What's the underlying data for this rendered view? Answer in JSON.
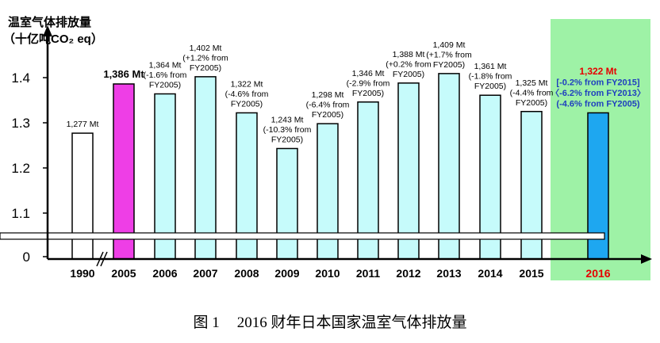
{
  "chart_data": {
    "type": "bar",
    "title_line1": "温室气体排放量",
    "title_line2": "（十亿吨CO₂ eq）",
    "ylabel": "十亿吨CO₂ eq",
    "ylim": [
      1.05,
      1.45
    ],
    "y_ticks": [
      "1.4",
      "1.3",
      "1.2",
      "1.1",
      "0"
    ],
    "y_tick_values": [
      1.4,
      1.3,
      1.2,
      1.1,
      1.05
    ],
    "axis_break": true,
    "categories": [
      "1990",
      "2005",
      "2006",
      "2007",
      "2008",
      "2009",
      "2010",
      "2011",
      "2012",
      "2013",
      "2014",
      "2015",
      "2016"
    ],
    "values": [
      1.277,
      1.386,
      1.364,
      1.402,
      1.322,
      1.243,
      1.298,
      1.346,
      1.388,
      1.409,
      1.361,
      1.325,
      1.322
    ],
    "bar_colors": [
      "#ffffff",
      "#ee3ee6",
      "#c6fbfb",
      "#c6fbfb",
      "#c6fbfb",
      "#c6fbfb",
      "#c6fbfb",
      "#c6fbfb",
      "#c6fbfb",
      "#c6fbfb",
      "#c6fbfb",
      "#c6fbfb",
      "#1ea7f0"
    ],
    "highlight_category": "2016",
    "highlight_bg": "#9ef2a6",
    "annotations": [
      [
        "1,277 Mt"
      ],
      [
        "1,386 Mt"
      ],
      [
        "1,364 Mt",
        "(-1.6% from",
        "FY2005)"
      ],
      [
        "1,402 Mt",
        "(+1.2% from",
        "FY2005)"
      ],
      [
        "1,322 Mt",
        "(-4.6% from",
        "FY2005)"
      ],
      [
        "1,243 Mt",
        "(-10.3% from",
        "FY2005)"
      ],
      [
        "1,298 Mt",
        "(-6.4% from",
        "FY2005)"
      ],
      [
        "1,346 Mt",
        "(-2.9% from",
        "FY2005)"
      ],
      [
        "1,388 Mt",
        "(+0.2% from",
        "FY2005)"
      ],
      [
        "1,409 Mt",
        "(+1.7% from",
        "FY2005)"
      ],
      [
        "1,361 Mt",
        "(-1.8% from",
        "FY2005)"
      ],
      [
        "1,325 Mt",
        "(-4.4% from",
        "FY2005)"
      ],
      [
        "1,322 Mt",
        "[-0.2% from FY2015]",
        "〈-6.2% from FY2013〉",
        "(-4.6% from FY2005)"
      ]
    ]
  },
  "caption": {
    "figure_label": "图 1",
    "text": "2016 财年日本国家温室气体排放量"
  }
}
